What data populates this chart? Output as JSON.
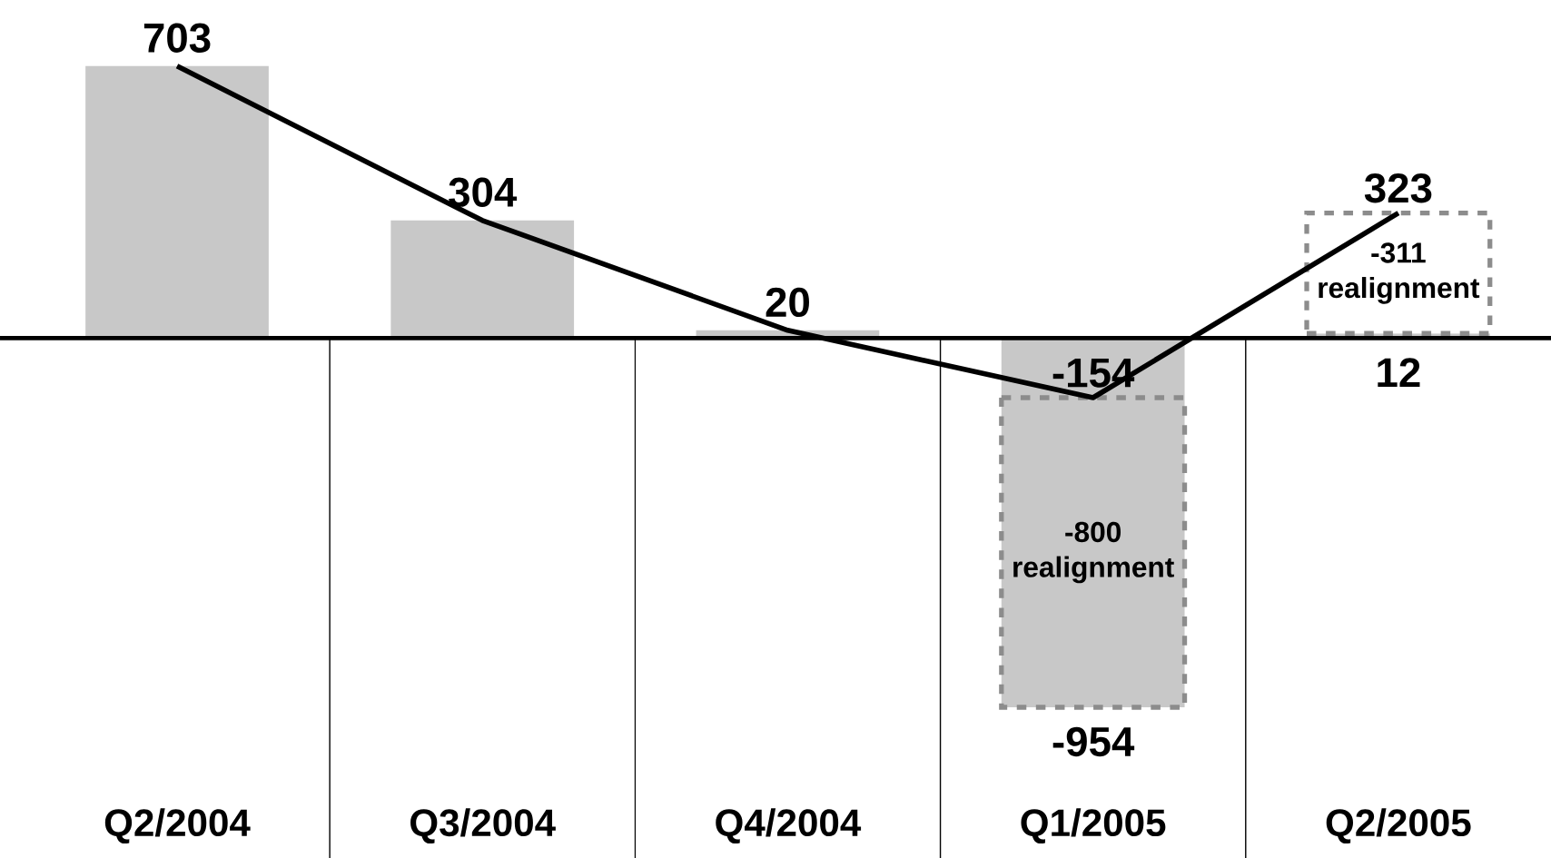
{
  "chart_data": {
    "type": "bar",
    "stacked": true,
    "categories": [
      "Q2/2004",
      "Q3/2004",
      "Q4/2004",
      "Q1/2005",
      "Q2/2005"
    ],
    "series": [
      {
        "color": "#c8c8c8",
        "values": [
          703,
          304,
          20,
          -154,
          12
        ],
        "value_labels": [
          "703",
          "304",
          "20",
          null,
          "12"
        ]
      },
      {
        "type": "line",
        "color": "#000000",
        "values": [
          703,
          304,
          20,
          -154,
          323
        ],
        "value_labels": [
          null,
          null,
          null,
          "-154",
          "323"
        ]
      },
      {
        "colors": [
          null,
          null,
          null,
          "#c8c8c8",
          "#ffffff"
        ],
        "line_style": "dashed",
        "values": [
          null,
          null,
          null,
          -800,
          311
        ]
      }
    ],
    "totals": [
      null,
      null,
      null,
      "-954",
      null
    ],
    "annotations": [
      "-800 realignment",
      "-311 realignment"
    ]
  }
}
